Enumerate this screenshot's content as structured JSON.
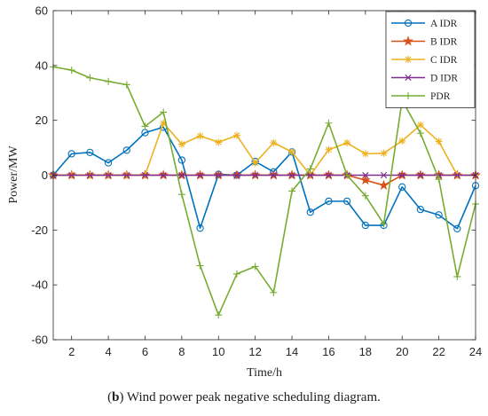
{
  "caption": {
    "open": "(",
    "letter": "b",
    "text": ") Wind power peak negative scheduling diagram."
  },
  "chart_data": {
    "type": "line",
    "xlabel": "Time/h",
    "ylabel": "Power/MW",
    "xlim": [
      1,
      24
    ],
    "ylim": [
      -60,
      60
    ],
    "xticks": [
      2,
      4,
      6,
      8,
      10,
      12,
      14,
      16,
      18,
      20,
      22,
      24
    ],
    "yticks": [
      -60,
      -40,
      -20,
      0,
      20,
      40,
      60
    ],
    "grid": false,
    "legend_position": "top-right",
    "x": [
      1,
      2,
      3,
      4,
      5,
      6,
      7,
      8,
      9,
      10,
      11,
      12,
      13,
      14,
      15,
      16,
      17,
      18,
      19,
      20,
      21,
      22,
      23,
      24
    ],
    "series": [
      {
        "name": "A IDR",
        "color": "#0072BD",
        "marker": "circle",
        "values": [
          0,
          7.8,
          8.3,
          4.5,
          9.1,
          15.5,
          17.5,
          5.5,
          -19.3,
          0.3,
          0,
          5,
          1.2,
          8.5,
          -13.5,
          -9.5,
          -9.5,
          -18.3,
          -18.3,
          -4.3,
          -12.5,
          -14.5,
          -19.5,
          -3.8
        ]
      },
      {
        "name": "B IDR",
        "color": "#D95319",
        "marker": "star",
        "values": [
          0,
          0,
          0,
          0,
          0,
          0,
          0,
          0,
          0,
          0,
          0,
          0,
          0,
          0,
          0,
          0,
          0,
          -1.8,
          -3.7,
          0,
          0,
          0,
          0,
          0
        ]
      },
      {
        "name": "C IDR",
        "color": "#EDB120",
        "marker": "asterisk",
        "values": [
          0,
          0,
          0,
          0,
          0,
          0,
          19,
          11.3,
          14.3,
          12,
          14.5,
          4.5,
          11.8,
          8.5,
          0,
          9.3,
          11.8,
          7.8,
          8,
          12.5,
          18.3,
          12.3,
          0,
          0
        ]
      },
      {
        "name": "D IDR",
        "color": "#7E2F8E",
        "marker": "x",
        "values": [
          0,
          0,
          0,
          0,
          0,
          0,
          0,
          0,
          0,
          0,
          0,
          0,
          0,
          0,
          0,
          0,
          0,
          0,
          0,
          0,
          0,
          0,
          0,
          0
        ]
      },
      {
        "name": "PDR",
        "color": "#77AC30",
        "marker": "plus",
        "values": [
          39.5,
          38.3,
          35.5,
          34.2,
          33,
          17.8,
          23,
          -7,
          -33,
          -51,
          -36,
          -33.3,
          -42.8,
          -5.8,
          2.3,
          19,
          0,
          -7.5,
          -17.8,
          27.3,
          15.3,
          -1.5,
          -37,
          -10.5
        ]
      }
    ]
  }
}
